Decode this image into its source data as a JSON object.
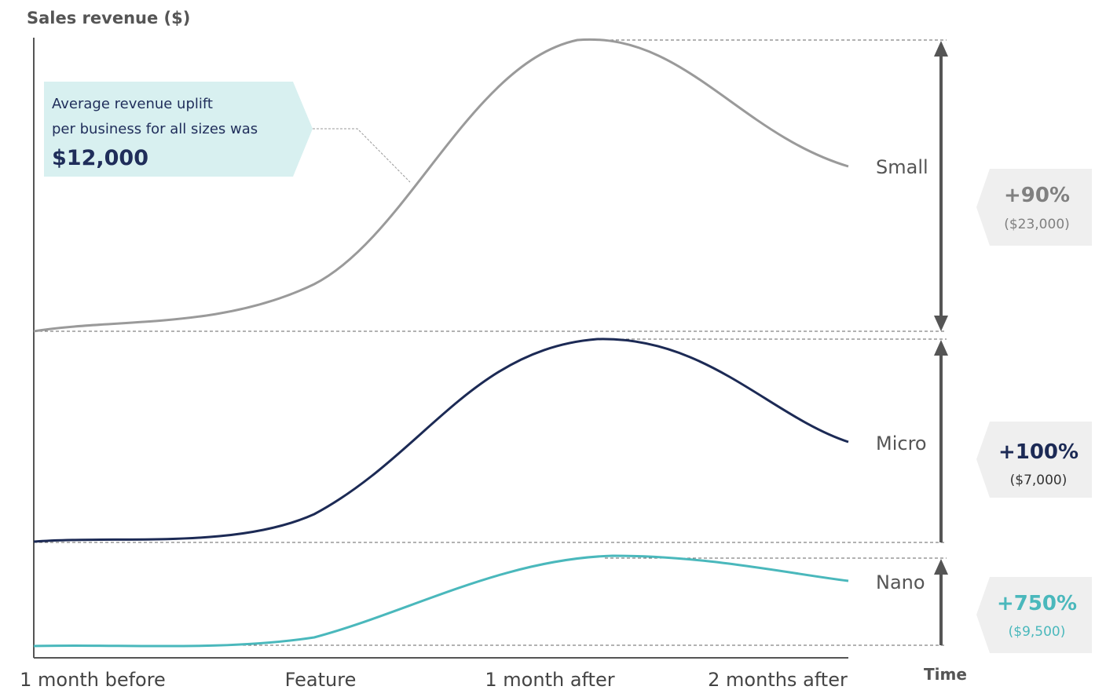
{
  "chart_data": {
    "type": "line",
    "ylabel": "Sales revenue ($)",
    "xlabel": "Time",
    "categories": [
      "1 month before",
      "Feature",
      "1 month after",
      "2 months after"
    ],
    "series": [
      {
        "name": "Small",
        "color": "#9a9a9a",
        "uplift_pct": "+90%",
        "uplift_amount": "($23,000)",
        "pct_color": "#808080",
        "amt_color": "#808080"
      },
      {
        "name": "Micro",
        "color": "#1c2a55",
        "uplift_pct": "+100%",
        "uplift_amount": "($7,000)",
        "pct_color": "#1c2a55",
        "amt_color": "#333333"
      },
      {
        "name": "Nano",
        "color": "#4ab8bc",
        "uplift_pct": "+750%",
        "uplift_amount": "($9,500)",
        "pct_color": "#4ab8bc",
        "amt_color": "#4ab8bc"
      }
    ],
    "callout": {
      "line1": "Average revenue uplift",
      "line2": "per business for all sizes was",
      "value": "$12,000"
    }
  }
}
